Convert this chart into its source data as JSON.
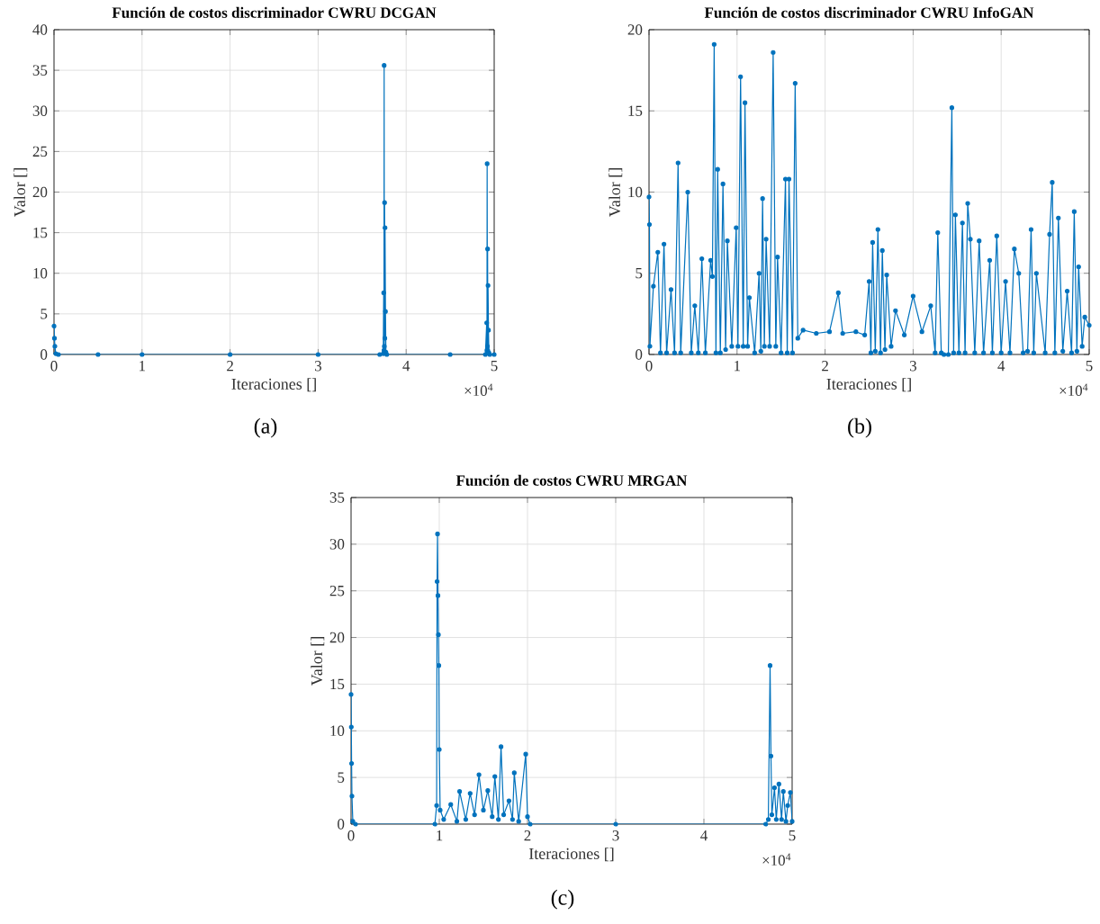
{
  "chart_data": [
    {
      "type": "line",
      "title": "Función de costos discriminador CWRU DCGAN",
      "xlabel": "Iteraciones []",
      "ylabel": "Valor []",
      "color": "#0072bd",
      "marker": "circle",
      "line_style": "solid",
      "grid": true,
      "xlim": [
        0,
        5
      ],
      "ylim": [
        0,
        40
      ],
      "xticks": [
        0,
        1,
        2,
        3,
        4,
        5
      ],
      "yticks": [
        0,
        5,
        10,
        15,
        20,
        25,
        30,
        35,
        40
      ],
      "annotations": [
        "×10$^{4}$",
        "(a)"
      ],
      "x": [
        0,
        0.005,
        0.01,
        0.02,
        0.05,
        0.5,
        1,
        2,
        3,
        3.7,
        3.74,
        3.745,
        3.748,
        3.75,
        3.752,
        3.755,
        3.758,
        3.76,
        3.765,
        3.77,
        3.78,
        4.5,
        4.9,
        4.915,
        4.918,
        4.92,
        4.923,
        4.925,
        4.928,
        4.93,
        4.935,
        4.94,
        4.95,
        5
      ],
      "values": [
        3.5,
        2.0,
        1.0,
        0.1,
        0,
        0,
        0,
        0,
        0,
        0,
        0.1,
        7.6,
        0.5,
        35.6,
        1.0,
        18.7,
        2.0,
        15.6,
        5.3,
        0.3,
        0,
        0,
        0,
        3.9,
        0.5,
        23.5,
        1.0,
        13.0,
        0.5,
        8.5,
        3.0,
        0.2,
        0,
        0
      ]
    },
    {
      "type": "line",
      "title": "Función de costos discriminador CWRU InfoGAN",
      "xlabel": "Iteraciones []",
      "ylabel": "Valor []",
      "color": "#0072bd",
      "marker": "circle",
      "line_style": "solid",
      "grid": true,
      "xlim": [
        0,
        5
      ],
      "ylim": [
        0,
        20
      ],
      "xticks": [
        0,
        1,
        2,
        3,
        4,
        5
      ],
      "yticks": [
        0,
        5,
        10,
        15,
        20
      ],
      "annotations": [
        "×10$^{4}$",
        "(b)"
      ],
      "x": [
        0,
        0.005,
        0.01,
        0.05,
        0.1,
        0.13,
        0.17,
        0.2,
        0.25,
        0.29,
        0.33,
        0.36,
        0.44,
        0.48,
        0.52,
        0.56,
        0.6,
        0.64,
        0.7,
        0.72,
        0.74,
        0.76,
        0.78,
        0.81,
        0.84,
        0.87,
        0.89,
        0.94,
        0.99,
        1.01,
        1.04,
        1.07,
        1.09,
        1.12,
        1.14,
        1.2,
        1.25,
        1.27,
        1.29,
        1.31,
        1.33,
        1.37,
        1.41,
        1.44,
        1.46,
        1.5,
        1.55,
        1.57,
        1.59,
        1.63,
        1.66,
        1.69,
        1.75,
        1.9,
        2.05,
        2.15,
        2.2,
        2.35,
        2.45,
        2.5,
        2.52,
        2.54,
        2.57,
        2.6,
        2.63,
        2.65,
        2.68,
        2.7,
        2.75,
        2.8,
        2.9,
        3,
        3.1,
        3.2,
        3.25,
        3.28,
        3.32,
        3.35,
        3.4,
        3.44,
        3.46,
        3.48,
        3.52,
        3.56,
        3.59,
        3.62,
        3.65,
        3.7,
        3.75,
        3.8,
        3.87,
        3.9,
        3.95,
        4,
        4.05,
        4.1,
        4.15,
        4.2,
        4.25,
        4.3,
        4.34,
        4.37,
        4.4,
        4.5,
        4.55,
        4.58,
        4.61,
        4.65,
        4.7,
        4.75,
        4.8,
        4.83,
        4.86,
        4.88,
        4.92,
        4.95,
        5
      ],
      "values": [
        9.7,
        8.0,
        0.5,
        4.2,
        6.3,
        0.1,
        6.8,
        0.1,
        4.0,
        0.1,
        11.8,
        0.1,
        10.0,
        0.1,
        3.0,
        0.1,
        5.9,
        0.1,
        5.8,
        4.8,
        19.1,
        0.1,
        11.4,
        0.1,
        10.5,
        0.3,
        7.0,
        0.5,
        7.8,
        0.5,
        17.1,
        0.5,
        15.5,
        0.5,
        3.5,
        0.1,
        5.0,
        0.2,
        9.6,
        0.5,
        7.1,
        0.5,
        18.6,
        0.5,
        6.0,
        0.1,
        10.8,
        0.1,
        10.8,
        0.1,
        16.7,
        1.0,
        1.5,
        1.3,
        1.4,
        3.8,
        1.3,
        1.4,
        1.2,
        4.5,
        0.1,
        6.9,
        0.2,
        7.7,
        0.1,
        6.4,
        0.3,
        4.9,
        0.5,
        2.7,
        1.2,
        3.6,
        1.4,
        3.0,
        0.1,
        7.5,
        0.1,
        0,
        0,
        15.2,
        0.1,
        8.6,
        0.1,
        8.1,
        0.1,
        9.3,
        7.1,
        0.1,
        7.0,
        0.1,
        5.8,
        0.1,
        7.3,
        0.1,
        4.5,
        0.1,
        6.5,
        5.0,
        0.1,
        0.2,
        7.7,
        0.1,
        5.0,
        0.1,
        7.4,
        10.6,
        0.1,
        8.4,
        0.2,
        3.9,
        0.1,
        8.8,
        0.2,
        5.4,
        0.5,
        2.3,
        1.8
      ]
    },
    {
      "type": "line",
      "title": "Función de costos CWRU MRGAN",
      "xlabel": "Iteraciones []",
      "ylabel": "Valor []",
      "color": "#0072bd",
      "marker": "circle",
      "line_style": "solid",
      "grid": true,
      "xlim": [
        0,
        5
      ],
      "ylim": [
        0,
        35
      ],
      "xticks": [
        0,
        1,
        2,
        3,
        4,
        5
      ],
      "yticks": [
        0,
        5,
        10,
        15,
        20,
        25,
        30,
        35
      ],
      "annotations": [
        "×10$^{4}$",
        "(c)"
      ],
      "x": [
        0,
        0.003,
        0.006,
        0.01,
        0.02,
        0.05,
        0.95,
        0.97,
        0.975,
        0.98,
        0.985,
        0.99,
        0.995,
        1,
        1.01,
        1.05,
        1.13,
        1.2,
        1.23,
        1.3,
        1.35,
        1.4,
        1.45,
        1.5,
        1.55,
        1.6,
        1.63,
        1.67,
        1.7,
        1.73,
        1.79,
        1.83,
        1.85,
        1.9,
        1.98,
        2,
        2.03,
        3,
        4.7,
        4.73,
        4.75,
        4.76,
        4.77,
        4.8,
        4.82,
        4.85,
        4.88,
        4.9,
        4.93,
        4.95,
        4.98,
        5
      ],
      "values": [
        13.9,
        10.4,
        6.5,
        3.0,
        0.3,
        0,
        0,
        2.0,
        26.0,
        31.1,
        24.5,
        20.3,
        17.0,
        8.0,
        1.5,
        0.5,
        2.1,
        0.3,
        3.5,
        0.5,
        3.3,
        1.0,
        5.3,
        1.5,
        3.6,
        0.8,
        5.1,
        0.5,
        8.3,
        1.0,
        2.5,
        0.5,
        5.5,
        0.3,
        7.5,
        0.8,
        0,
        0,
        0,
        0.5,
        17.0,
        7.3,
        1.0,
        3.9,
        0.5,
        4.3,
        0.5,
        3.5,
        0.3,
        2.0,
        3.4,
        0.3
      ]
    }
  ]
}
